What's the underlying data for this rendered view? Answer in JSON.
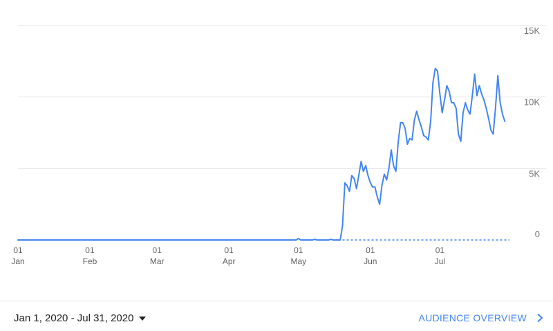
{
  "chart_data": {
    "type": "line",
    "title": "",
    "xlabel": "",
    "ylabel": "",
    "ylim": [
      0,
      15000
    ],
    "y_ticks": [
      "0",
      "5K",
      "10K",
      "15K"
    ],
    "y_tick_values": [
      0,
      5000,
      10000,
      15000
    ],
    "x_ticks": [
      {
        "day": "01",
        "month": "Jan",
        "date": "2020-01-01"
      },
      {
        "day": "01",
        "month": "Feb",
        "date": "2020-02-01"
      },
      {
        "day": "01",
        "month": "Mar",
        "date": "2020-03-01"
      },
      {
        "day": "01",
        "month": "Apr",
        "date": "2020-04-01"
      },
      {
        "day": "01",
        "month": "May",
        "date": "2020-05-01"
      },
      {
        "day": "01",
        "month": "Jun",
        "date": "2020-06-01"
      },
      {
        "day": "01",
        "month": "Jul",
        "date": "2020-07-01"
      }
    ],
    "x_range": [
      "2020-01-01",
      "2020-07-31"
    ],
    "grid": true,
    "line_color": "#4285f4",
    "series": [
      {
        "points": [
          [
            "2020-01-01",
            0
          ],
          [
            "2020-04-30",
            0
          ],
          [
            "2020-05-01",
            100
          ],
          [
            "2020-05-02",
            0
          ],
          [
            "2020-05-07",
            0
          ],
          [
            "2020-05-08",
            50
          ],
          [
            "2020-05-09",
            0
          ],
          [
            "2020-05-14",
            0
          ],
          [
            "2020-05-15",
            50
          ],
          [
            "2020-05-16",
            0
          ],
          [
            "2020-05-19",
            0
          ],
          [
            "2020-05-20",
            1000
          ],
          [
            "2020-05-21",
            4000
          ],
          [
            "2020-05-22",
            3800
          ],
          [
            "2020-05-23",
            3400
          ],
          [
            "2020-05-24",
            4500
          ],
          [
            "2020-05-25",
            4300
          ],
          [
            "2020-05-26",
            3600
          ],
          [
            "2020-05-27",
            4500
          ],
          [
            "2020-05-28",
            5500
          ],
          [
            "2020-05-29",
            4800
          ],
          [
            "2020-05-30",
            5200
          ],
          [
            "2020-05-31",
            4500
          ],
          [
            "2020-06-01",
            4000
          ],
          [
            "2020-06-02",
            3700
          ],
          [
            "2020-06-03",
            3700
          ],
          [
            "2020-06-04",
            3000
          ],
          [
            "2020-06-05",
            2500
          ],
          [
            "2020-06-06",
            3800
          ],
          [
            "2020-06-07",
            4600
          ],
          [
            "2020-06-08",
            4200
          ],
          [
            "2020-06-09",
            5000
          ],
          [
            "2020-06-10",
            6300
          ],
          [
            "2020-06-11",
            5200
          ],
          [
            "2020-06-12",
            4800
          ],
          [
            "2020-06-13",
            6800
          ],
          [
            "2020-06-14",
            8200
          ],
          [
            "2020-06-15",
            8200
          ],
          [
            "2020-06-16",
            7800
          ],
          [
            "2020-06-17",
            6700
          ],
          [
            "2020-06-18",
            7100
          ],
          [
            "2020-06-19",
            7000
          ],
          [
            "2020-06-20",
            8400
          ],
          [
            "2020-06-21",
            9000
          ],
          [
            "2020-06-22",
            8400
          ],
          [
            "2020-06-23",
            7900
          ],
          [
            "2020-06-24",
            7300
          ],
          [
            "2020-06-25",
            7200
          ],
          [
            "2020-06-26",
            7000
          ],
          [
            "2020-06-27",
            8300
          ],
          [
            "2020-06-28",
            11000
          ],
          [
            "2020-06-29",
            12000
          ],
          [
            "2020-06-30",
            11800
          ],
          [
            "2020-07-01",
            10200
          ],
          [
            "2020-07-02",
            8900
          ],
          [
            "2020-07-03",
            9800
          ],
          [
            "2020-07-04",
            10800
          ],
          [
            "2020-07-05",
            10400
          ],
          [
            "2020-07-06",
            9600
          ],
          [
            "2020-07-07",
            9600
          ],
          [
            "2020-07-08",
            9200
          ],
          [
            "2020-07-09",
            7400
          ],
          [
            "2020-07-10",
            6900
          ],
          [
            "2020-07-11",
            8900
          ],
          [
            "2020-07-12",
            9600
          ],
          [
            "2020-07-13",
            9100
          ],
          [
            "2020-07-14",
            8800
          ],
          [
            "2020-07-15",
            10100
          ],
          [
            "2020-07-16",
            11600
          ],
          [
            "2020-07-17",
            10100
          ],
          [
            "2020-07-18",
            10800
          ],
          [
            "2020-07-19",
            10200
          ],
          [
            "2020-07-20",
            9800
          ],
          [
            "2020-07-21",
            9200
          ],
          [
            "2020-07-22",
            8500
          ],
          [
            "2020-07-23",
            7700
          ],
          [
            "2020-07-24",
            7400
          ],
          [
            "2020-07-25",
            9300
          ],
          [
            "2020-07-26",
            11500
          ],
          [
            "2020-07-27",
            9600
          ],
          [
            "2020-07-28",
            8800
          ],
          [
            "2020-07-29",
            8300
          ]
        ]
      }
    ],
    "baseline_dashed_from": "2020-05-20"
  },
  "footer": {
    "date_range": "Jan 1, 2020 - Jul 31, 2020",
    "link_label": "AUDIENCE OVERVIEW"
  },
  "icons": [
    "caret-down-icon",
    "chevron-right-icon"
  ]
}
